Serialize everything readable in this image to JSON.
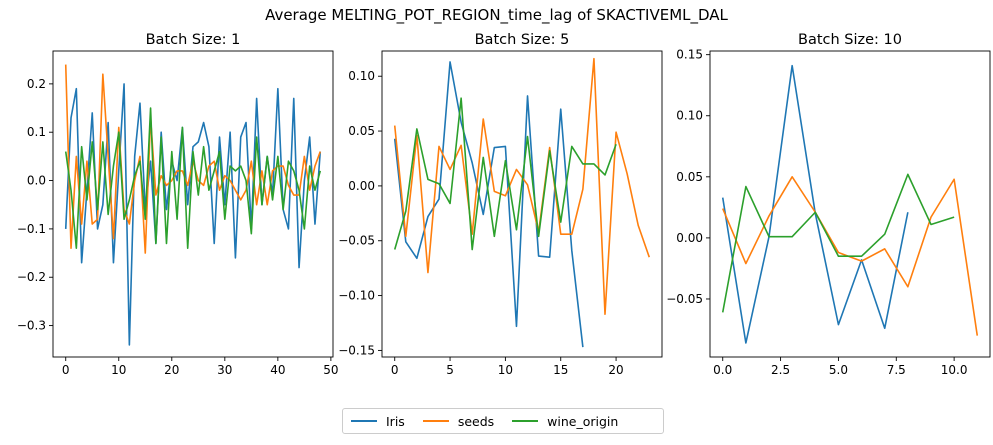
{
  "title": "Average MELTING_POT_REGION_time_lag of SKACTIVEML_DAL",
  "colors": {
    "Iris": "#1f77b4",
    "seeds": "#ff7f0e",
    "wine_origin": "#2ca02c"
  },
  "legend": {
    "items": [
      "Iris",
      "seeds",
      "wine_origin"
    ],
    "placement": "lower-center"
  },
  "chart_data": [
    {
      "type": "line",
      "title": "Batch Size: 1",
      "xlim": [
        -2.4,
        50.4
      ],
      "ylim": [
        -0.365,
        0.268
      ],
      "xticks": [
        0,
        10,
        20,
        30,
        40,
        50
      ],
      "xtick_labels": [
        "0",
        "10",
        "20",
        "30",
        "40",
        "50"
      ],
      "yticks": [
        -0.3,
        -0.2,
        -0.1,
        0.0,
        0.1,
        0.2
      ],
      "ytick_labels": [
        "−0.3",
        "−0.2",
        "−0.1",
        "0.0",
        "0.1",
        "0.2"
      ],
      "series": [
        {
          "name": "Iris",
          "x": [
            0,
            1,
            2,
            3,
            4,
            5,
            6,
            7,
            8,
            9,
            10,
            11,
            12,
            13,
            14,
            15,
            16,
            17,
            18,
            19,
            20,
            21,
            22,
            23,
            24,
            25,
            26,
            27,
            28,
            29,
            30,
            31,
            32,
            33,
            34,
            35,
            36,
            37,
            38,
            39,
            40,
            41,
            42,
            43,
            44,
            45,
            46,
            47,
            48
          ],
          "y": [
            -0.1,
            0.13,
            0.19,
            -0.17,
            -0.02,
            0.14,
            -0.1,
            -0.05,
            0.12,
            -0.17,
            0.02,
            0.2,
            -0.34,
            0.05,
            0.16,
            -0.06,
            0.04,
            -0.13,
            0.1,
            -0.06,
            0.04,
            0.0,
            0.11,
            -0.05,
            0.07,
            0.08,
            0.12,
            0.07,
            -0.13,
            0.09,
            -0.05,
            0.1,
            -0.16,
            0.09,
            0.12,
            -0.1,
            0.17,
            -0.05,
            0.05,
            -0.03,
            0.19,
            -0.06,
            -0.1,
            0.17,
            -0.18,
            0.0,
            0.09,
            -0.09,
            0.06
          ]
        },
        {
          "name": "seeds",
          "x": [
            0,
            1,
            2,
            3,
            4,
            5,
            6,
            7,
            8,
            9,
            10,
            11,
            12,
            13,
            14,
            15,
            16,
            17,
            18,
            19,
            20,
            21,
            22,
            23,
            24,
            25,
            26,
            27,
            28,
            29,
            30,
            31,
            32,
            33,
            34,
            35,
            36,
            37,
            38,
            39,
            40,
            41,
            42,
            43,
            44,
            45,
            46,
            47,
            48
          ],
          "y": [
            0.24,
            -0.14,
            0.05,
            -0.09,
            0.04,
            -0.09,
            -0.08,
            0.22,
            0.05,
            -0.12,
            0.11,
            -0.06,
            -0.09,
            0.0,
            0.05,
            -0.15,
            0.13,
            -0.03,
            0.01,
            -0.01,
            0.0,
            0.02,
            0.02,
            -0.01,
            0.04,
            0.0,
            -0.01,
            0.03,
            0.04,
            -0.02,
            0.01,
            0.0,
            -0.02,
            -0.04,
            -0.02,
            0.04,
            -0.05,
            0.02,
            -0.05,
            0.02,
            0.03,
            0.03,
            -0.01,
            -0.03,
            -0.03,
            0.05,
            -0.02,
            0.03,
            0.06
          ]
        },
        {
          "name": "wine_origin",
          "x": [
            0,
            1,
            2,
            3,
            4,
            5,
            6,
            7,
            8,
            9,
            10,
            11,
            12,
            13,
            14,
            15,
            16,
            17,
            18,
            19,
            20,
            21,
            22,
            23,
            24,
            25,
            26,
            27,
            28,
            29,
            30,
            31,
            32,
            33,
            34,
            35,
            36,
            37,
            38,
            39,
            40,
            41,
            42,
            43,
            44,
            45,
            46,
            47,
            48
          ],
          "y": [
            0.06,
            -0.02,
            -0.14,
            0.07,
            -0.04,
            0.08,
            -0.06,
            0.08,
            -0.07,
            0.03,
            0.1,
            -0.08,
            -0.04,
            0.01,
            0.04,
            -0.08,
            0.15,
            -0.13,
            0.09,
            -0.13,
            0.06,
            -0.08,
            0.11,
            -0.14,
            0.06,
            -0.03,
            0.07,
            -0.02,
            0.02,
            0.06,
            -0.08,
            0.03,
            0.02,
            0.03,
            0.0,
            -0.11,
            0.09,
            -0.05,
            0.05,
            -0.04,
            0.05,
            -0.06,
            0.04,
            0.02,
            -0.02,
            -0.1,
            0.03,
            -0.02,
            0.02
          ]
        }
      ]
    },
    {
      "type": "line",
      "title": "Batch Size: 5",
      "xlim": [
        -1.15,
        24.15
      ],
      "ylim": [
        -0.156,
        0.123
      ],
      "xticks": [
        0,
        5,
        10,
        15,
        20
      ],
      "xtick_labels": [
        "0",
        "5",
        "10",
        "15",
        "20"
      ],
      "yticks": [
        -0.15,
        -0.1,
        -0.05,
        0.0,
        0.05,
        0.1
      ],
      "ytick_labels": [
        "−0.15",
        "−0.10",
        "−0.05",
        "0.00",
        "0.05",
        "0.10"
      ],
      "series": [
        {
          "name": "Iris",
          "x": [
            0,
            1,
            2,
            3,
            4,
            5,
            6,
            7,
            8,
            9,
            10,
            11,
            12,
            13,
            14,
            15,
            16,
            17
          ],
          "y": [
            0.043,
            -0.051,
            -0.066,
            -0.028,
            -0.012,
            0.113,
            0.058,
            0.021,
            -0.026,
            0.035,
            0.036,
            -0.128,
            0.082,
            -0.064,
            -0.065,
            0.07,
            -0.059,
            -0.147
          ]
        },
        {
          "name": "seeds",
          "x": [
            0,
            1,
            2,
            3,
            4,
            5,
            6,
            7,
            8,
            9,
            10,
            11,
            12,
            13,
            14,
            15,
            16,
            17,
            18,
            19,
            20,
            21,
            22,
            23
          ],
          "y": [
            0.055,
            -0.046,
            0.046,
            -0.079,
            0.036,
            0.015,
            0.037,
            -0.044,
            0.061,
            -0.005,
            -0.009,
            0.015,
            0.001,
            -0.042,
            0.035,
            -0.044,
            -0.044,
            -0.003,
            0.116,
            -0.117,
            0.049,
            0.011,
            -0.036,
            -0.065
          ]
        },
        {
          "name": "wine_origin",
          "x": [
            0,
            1,
            2,
            3,
            4,
            5,
            6,
            7,
            8,
            9,
            10,
            11,
            12,
            13,
            14,
            15,
            16,
            17,
            18,
            19,
            20
          ],
          "y": [
            -0.058,
            -0.023,
            0.052,
            0.006,
            0.002,
            -0.016,
            0.08,
            -0.058,
            0.026,
            -0.046,
            0.023,
            -0.04,
            0.045,
            -0.046,
            0.032,
            -0.033,
            0.036,
            0.02,
            0.02,
            0.01,
            0.038
          ]
        }
      ]
    },
    {
      "type": "line",
      "title": "Batch Size: 10",
      "xlim": [
        -0.55,
        11.55
      ],
      "ylim": [
        -0.0975,
        0.153
      ],
      "xticks": [
        0,
        2.5,
        5,
        7.5,
        10
      ],
      "xtick_labels": [
        "0.0",
        "2.5",
        "5.0",
        "7.5",
        "10.0"
      ],
      "yticks": [
        -0.05,
        0.0,
        0.05,
        0.1,
        0.15
      ],
      "ytick_labels": [
        "−0.05",
        "0.00",
        "0.05",
        "0.10",
        "0.15"
      ],
      "series": [
        {
          "name": "Iris",
          "x": [
            0,
            1,
            2,
            3,
            4,
            5,
            6,
            7,
            8
          ],
          "y": [
            0.033,
            -0.086,
            0.001,
            0.141,
            0.02,
            -0.071,
            -0.018,
            -0.074,
            0.021
          ]
        },
        {
          "name": "seeds",
          "x": [
            0,
            1,
            2,
            3,
            4,
            5,
            6,
            7,
            8,
            9,
            10,
            11
          ],
          "y": [
            0.024,
            -0.021,
            0.018,
            0.05,
            0.021,
            -0.012,
            -0.019,
            -0.009,
            -0.04,
            0.017,
            0.048,
            -0.08
          ]
        },
        {
          "name": "wine_origin",
          "x": [
            0,
            1,
            2,
            3,
            4,
            5,
            6,
            7,
            8,
            9,
            10
          ],
          "y": [
            -0.061,
            0.042,
            0.001,
            0.001,
            0.021,
            -0.015,
            -0.015,
            0.003,
            0.052,
            0.011,
            0.017
          ]
        }
      ]
    }
  ]
}
